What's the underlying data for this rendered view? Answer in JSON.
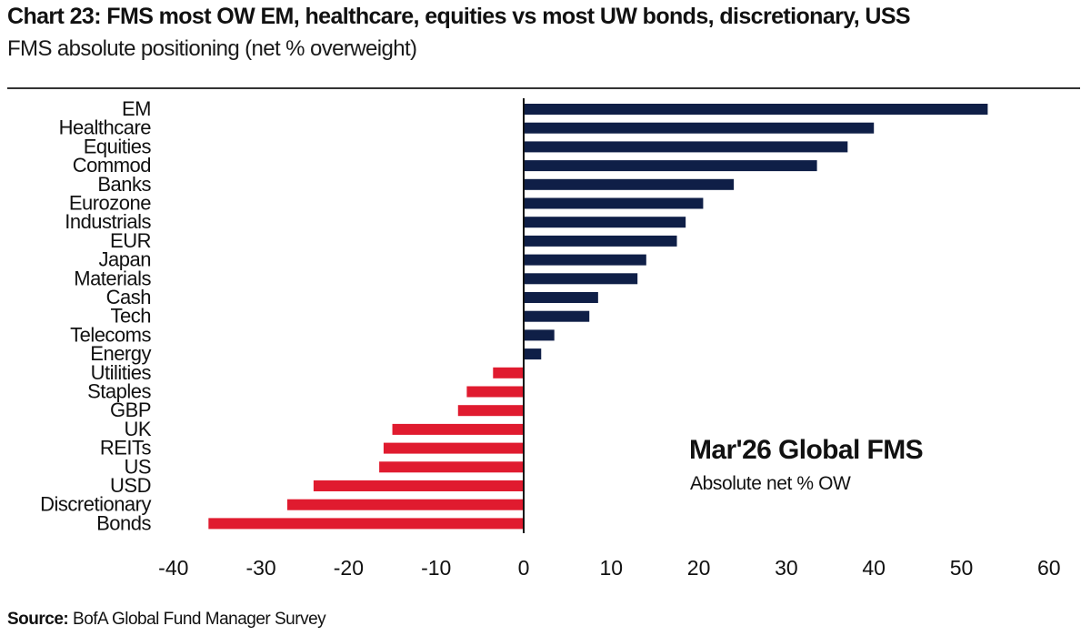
{
  "chart_data": {
    "type": "bar",
    "orientation": "horizontal",
    "title": "Chart 23: FMS most OW EM, healthcare, equities vs most UW bonds, discretionary, USS",
    "subtitle": "FMS absolute positioning (net % overweight)",
    "categories": [
      "EM",
      "Healthcare",
      "Equities",
      "Commod",
      "Banks",
      "Eurozone",
      "Industrials",
      "EUR",
      "Japan",
      "Materials",
      "Cash",
      "Tech",
      "Telecoms",
      "Energy",
      "Utilities",
      "Staples",
      "GBP",
      "UK",
      "REITs",
      "US",
      "USD",
      "Discretionary",
      "Bonds"
    ],
    "values": [
      53,
      40,
      37,
      33.5,
      24,
      20.5,
      18.5,
      17.5,
      14,
      13,
      8.5,
      7.5,
      3.5,
      2,
      -3.5,
      -6.5,
      -7.5,
      -15,
      -16,
      -16.5,
      -24,
      -27,
      -36
    ],
    "xlim": [
      -40,
      60
    ],
    "xticks": [
      -40,
      -30,
      -20,
      -10,
      0,
      10,
      20,
      30,
      40,
      50,
      60
    ],
    "xlabel": "",
    "ylabel": "",
    "positive_color": "#0f1f47",
    "negative_color": "#e01b2f",
    "annotation": {
      "title": "Mar'26 Global FMS",
      "subtitle": "Absolute net % OW"
    },
    "grid": false,
    "legend": "none"
  },
  "source": {
    "label": "Source:",
    "text": "BofA Global Fund Manager Survey"
  }
}
